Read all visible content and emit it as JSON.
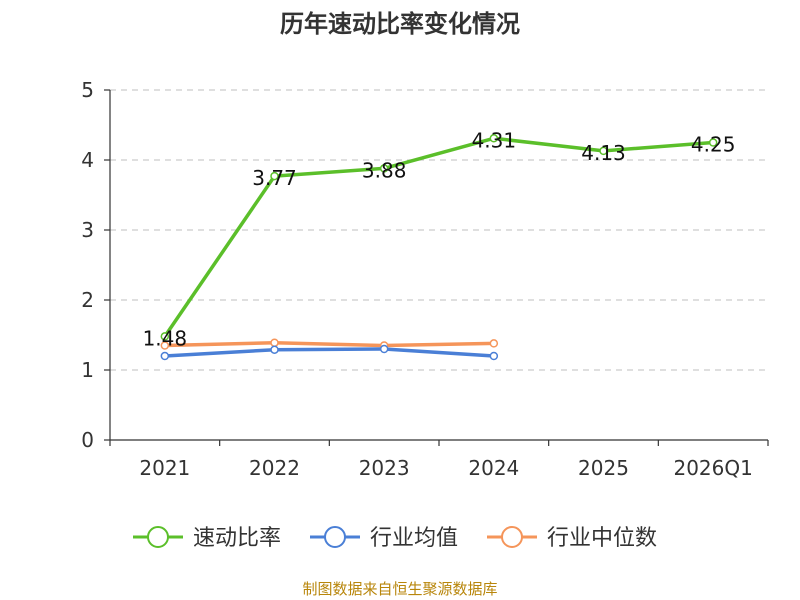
{
  "chart_data": {
    "type": "line",
    "title": "历年速动比率变化情况",
    "xlabel": "",
    "ylabel": "",
    "categories": [
      "2021",
      "2022",
      "2023",
      "2024",
      "2025",
      "2026Q1"
    ],
    "ylim": [
      0,
      5
    ],
    "yticks": [
      "0",
      "1",
      "2",
      "3",
      "4",
      "5"
    ],
    "grid": true,
    "legend_position": "bottom",
    "series": [
      {
        "name": "速动比率",
        "color": "#5bbf2a",
        "values": [
          1.48,
          3.77,
          3.88,
          4.31,
          4.13,
          4.25
        ],
        "labels": [
          "1.48",
          "3.77",
          "3.88",
          "4.31",
          "4.13",
          "4.25"
        ]
      },
      {
        "name": "行业均值",
        "color": "#4a7fd6",
        "values": [
          1.2,
          1.29,
          1.3,
          1.2,
          null,
          null
        ]
      },
      {
        "name": "行业中位数",
        "color": "#f5955a",
        "values": [
          1.35,
          1.39,
          1.35,
          1.38,
          null,
          null
        ]
      }
    ]
  },
  "source_note": "制图数据来自恒生聚源数据库"
}
